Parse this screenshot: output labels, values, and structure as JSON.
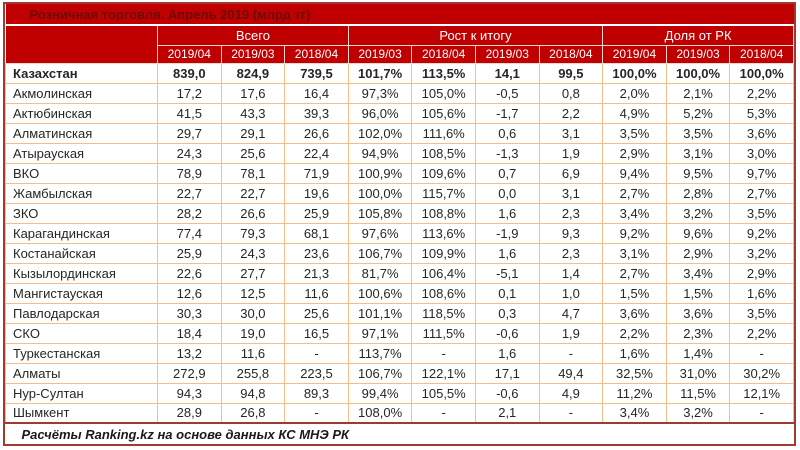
{
  "chart_data": {
    "type": "table",
    "title": "Розничная торговля. Апрель 2019 (млрд тг)",
    "unit": "млрд тг",
    "column_groups": [
      {
        "label": "Всего",
        "span": 3
      },
      {
        "label": "Рост к итогу",
        "span": 4
      },
      {
        "label": "Доля от РК",
        "span": 3
      }
    ],
    "sub_columns": [
      "2019/04",
      "2019/03",
      "2018/04",
      "2019/03",
      "2018/04",
      "2019/03",
      "2018/04",
      "2019/04",
      "2019/03",
      "2018/04"
    ],
    "rows": [
      {
        "name": "Казахстан",
        "bold": true,
        "values": [
          "839,0",
          "824,9",
          "739,5",
          "101,7%",
          "113,5%",
          "14,1",
          "99,5",
          "100,0%",
          "100,0%",
          "100,0%"
        ]
      },
      {
        "name": "Акмолинская",
        "values": [
          "17,2",
          "17,6",
          "16,4",
          "97,3%",
          "105,0%",
          "-0,5",
          "0,8",
          "2,0%",
          "2,1%",
          "2,2%"
        ]
      },
      {
        "name": "Актюбинская",
        "values": [
          "41,5",
          "43,3",
          "39,3",
          "96,0%",
          "105,6%",
          "-1,7",
          "2,2",
          "4,9%",
          "5,2%",
          "5,3%"
        ]
      },
      {
        "name": "Алматинская",
        "values": [
          "29,7",
          "29,1",
          "26,6",
          "102,0%",
          "111,6%",
          "0,6",
          "3,1",
          "3,5%",
          "3,5%",
          "3,6%"
        ]
      },
      {
        "name": "Атырауская",
        "values": [
          "24,3",
          "25,6",
          "22,4",
          "94,9%",
          "108,5%",
          "-1,3",
          "1,9",
          "2,9%",
          "3,1%",
          "3,0%"
        ]
      },
      {
        "name": "ВКО",
        "values": [
          "78,9",
          "78,1",
          "71,9",
          "100,9%",
          "109,6%",
          "0,7",
          "6,9",
          "9,4%",
          "9,5%",
          "9,7%"
        ]
      },
      {
        "name": "Жамбылская",
        "values": [
          "22,7",
          "22,7",
          "19,6",
          "100,0%",
          "115,7%",
          "0,0",
          "3,1",
          "2,7%",
          "2,8%",
          "2,7%"
        ]
      },
      {
        "name": "ЗКО",
        "values": [
          "28,2",
          "26,6",
          "25,9",
          "105,8%",
          "108,8%",
          "1,6",
          "2,3",
          "3,4%",
          "3,2%",
          "3,5%"
        ]
      },
      {
        "name": "Карагандинская",
        "values": [
          "77,4",
          "79,3",
          "68,1",
          "97,6%",
          "113,6%",
          "-1,9",
          "9,3",
          "9,2%",
          "9,6%",
          "9,2%"
        ]
      },
      {
        "name": "Костанайская",
        "values": [
          "25,9",
          "24,3",
          "23,6",
          "106,7%",
          "109,9%",
          "1,6",
          "2,3",
          "3,1%",
          "2,9%",
          "3,2%"
        ]
      },
      {
        "name": "Кызылординская",
        "values": [
          "22,6",
          "27,7",
          "21,3",
          "81,7%",
          "106,4%",
          "-5,1",
          "1,4",
          "2,7%",
          "3,4%",
          "2,9%"
        ]
      },
      {
        "name": "Мангистауская",
        "values": [
          "12,6",
          "12,5",
          "11,6",
          "100,6%",
          "108,6%",
          "0,1",
          "1,0",
          "1,5%",
          "1,5%",
          "1,6%"
        ]
      },
      {
        "name": "Павлодарская",
        "values": [
          "30,3",
          "30,0",
          "25,6",
          "101,1%",
          "118,5%",
          "0,3",
          "4,7",
          "3,6%",
          "3,6%",
          "3,5%"
        ]
      },
      {
        "name": "СКО",
        "values": [
          "18,4",
          "19,0",
          "16,5",
          "97,1%",
          "111,5%",
          "-0,6",
          "1,9",
          "2,2%",
          "2,3%",
          "2,2%"
        ]
      },
      {
        "name": "Туркестанская",
        "values": [
          "13,2",
          "11,6",
          "-",
          "113,7%",
          "-",
          "1,6",
          "-",
          "1,6%",
          "1,4%",
          "-"
        ]
      },
      {
        "name": "Алматы",
        "values": [
          "272,9",
          "255,8",
          "223,5",
          "106,7%",
          "122,1%",
          "17,1",
          "49,4",
          "32,5%",
          "31,0%",
          "30,2%"
        ]
      },
      {
        "name": "Нур-Султан",
        "values": [
          "94,3",
          "94,8",
          "89,3",
          "99,4%",
          "105,5%",
          "-0,6",
          "4,9",
          "11,2%",
          "11,5%",
          "12,1%"
        ]
      },
      {
        "name": "Шымкент",
        "values": [
          "28,9",
          "26,8",
          "-",
          "108,0%",
          "-",
          "2,1",
          "-",
          "3,4%",
          "3,2%",
          "-"
        ]
      }
    ],
    "source_note": "Расчёты Ranking.kz на основе данных КС МНЭ РК"
  },
  "colors": {
    "header_background": "#C00000",
    "title_text": "#6E0B00",
    "header_text": "#FFFFFF",
    "body_text": "#262626",
    "body_grid": "#F4BE8C",
    "header_grid": "#F2D6D2",
    "outer_border": "#9E3A30",
    "body_background": "#FFFFFF"
  }
}
